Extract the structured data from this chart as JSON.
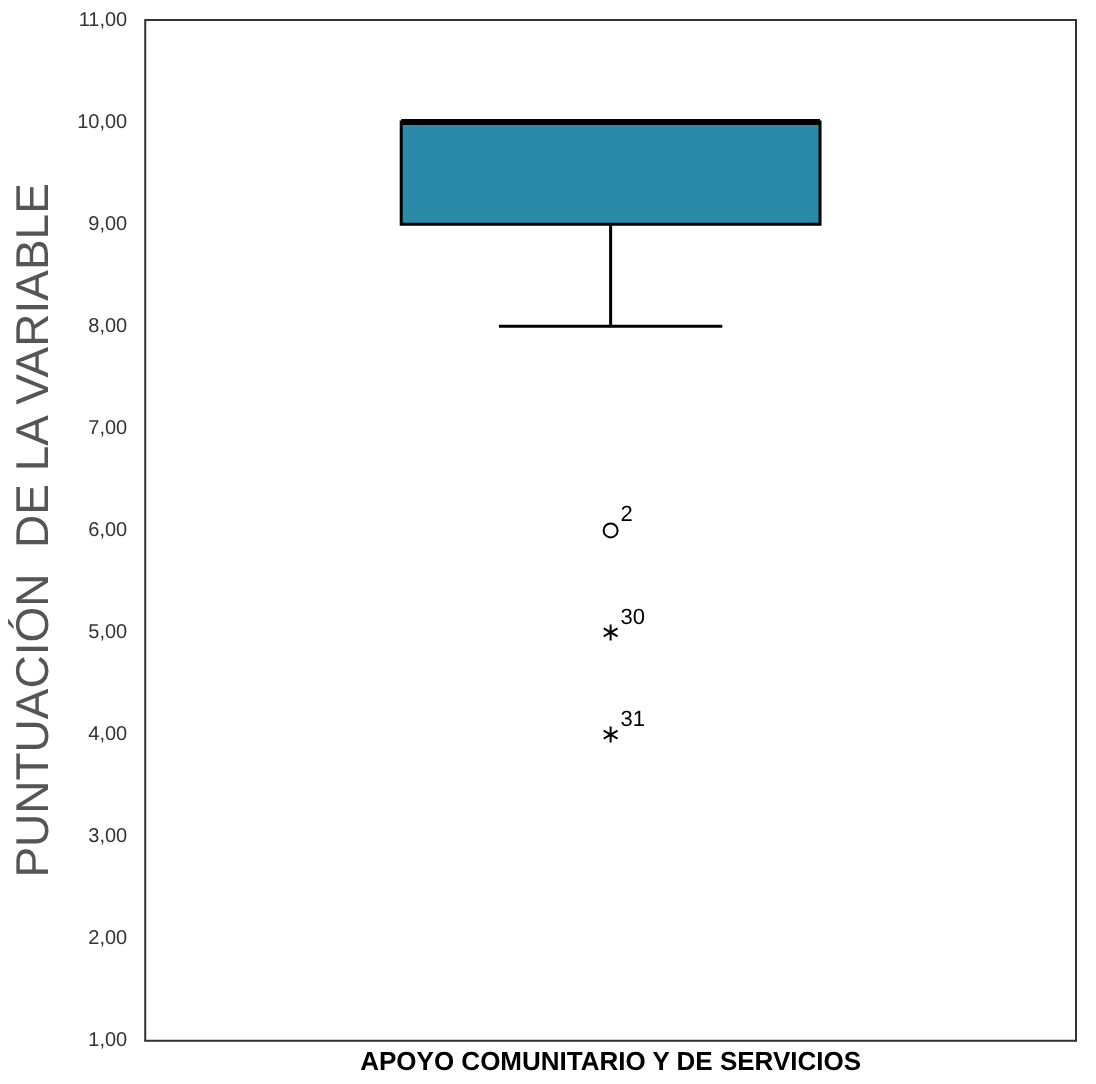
{
  "chart_data": {
    "type": "box",
    "ylabel": "PUNTUACIÓN  DE LA VARIABLE",
    "categories": [
      "APOYO COMUNITARIO Y DE SERVICIOS"
    ],
    "boxes": [
      {
        "low": 8,
        "q1": 9,
        "median": 10,
        "q3": 10,
        "high": 10,
        "outliers": [
          6,
          5,
          4
        ]
      }
    ],
    "color": "#2a8aa8",
    "ylim": [
      1,
      11
    ],
    "yticks": [
      {
        "value": 1,
        "label": "1,00"
      },
      {
        "value": 2,
        "label": "2,00"
      },
      {
        "value": 3,
        "label": "3,00"
      },
      {
        "value": 4,
        "label": "4,00"
      },
      {
        "value": 5,
        "label": "5,00"
      },
      {
        "value": 6,
        "label": "6,00"
      },
      {
        "value": 7,
        "label": "7,00"
      },
      {
        "value": 8,
        "label": "8,00"
      },
      {
        "value": 9,
        "label": "9,00"
      },
      {
        "value": 10,
        "label": "10,00"
      },
      {
        "value": 11,
        "label": "11,00"
      }
    ],
    "annotations": [
      "2",
      "30",
      "31"
    ],
    "grid": false,
    "legend": false
  }
}
